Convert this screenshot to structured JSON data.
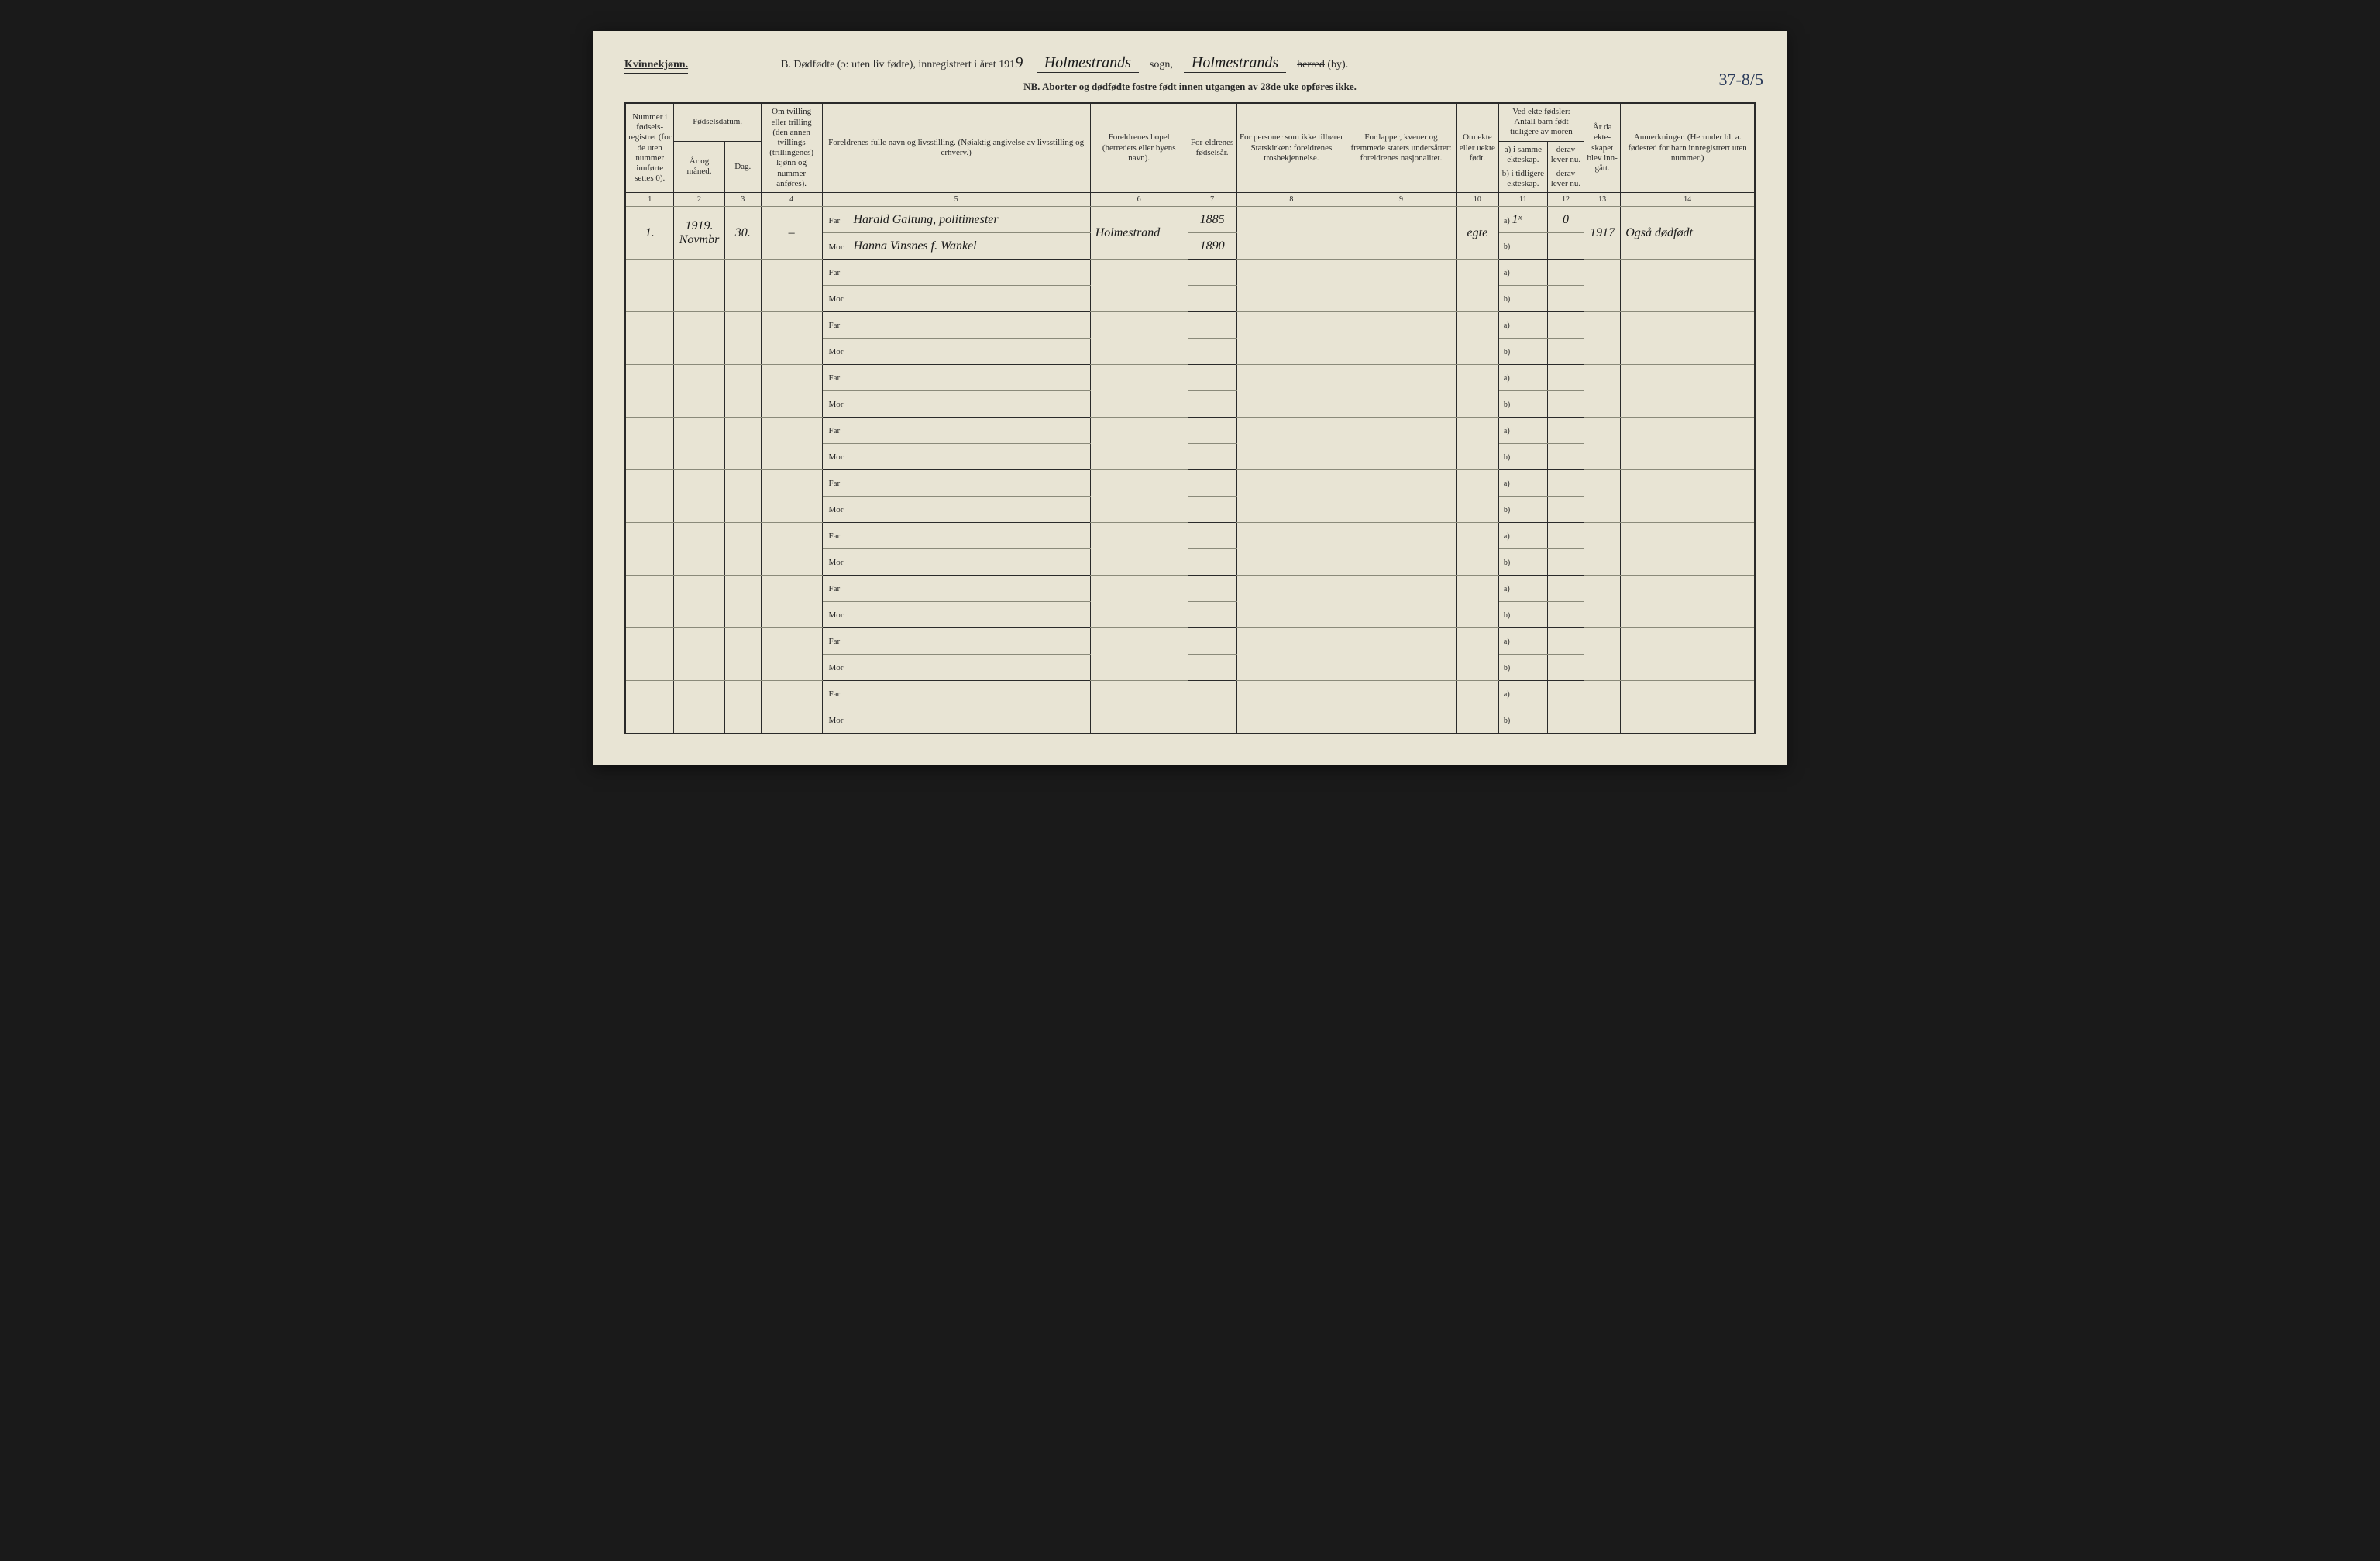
{
  "header": {
    "gender": "Kvinnekjønn.",
    "title_prefix": "B. Dødfødte (ɔ: uten liv fødte), innregistrert i året 191",
    "year_suffix": "9",
    "parish_value": "Holmestrands",
    "sogn_label": "sogn,",
    "district_value": "Holmestrands",
    "herred_strike": "herred",
    "by_label": "(by).",
    "sub_note": "NB. Aborter og dødfødte fostre født innen utgangen av 28de uke opføres ikke.",
    "page_number": "37-8/5"
  },
  "columns": {
    "c1": "Nummer i fødsels-registret (for de uten nummer innførte settes 0).",
    "c2_top": "Fødselsdatum.",
    "c2a": "År og måned.",
    "c2b": "Dag.",
    "c4": "Om tvilling eller trilling (den annen tvillings (trillingenes) kjønn og nummer anføres).",
    "c5": "Foreldrenes fulle navn og livsstilling. (Nøiaktig angivelse av livsstilling og erhverv.)",
    "c6": "Foreldrenes bopel (herredets eller byens navn).",
    "c7": "For-eldrenes fødselsår.",
    "c8": "For personer som ikke tilhører Statskirken: foreldrenes trosbekjennelse.",
    "c9": "For lapper, kvener og fremmede staters undersåtter: foreldrenes nasjonalitet.",
    "c10": "Om ekte eller uekte født.",
    "c11_top": "Ved ekte fødsler: Antall barn født tidligere av moren",
    "c11a": "a) i samme ekteskap.",
    "c11b": "b) i tidligere ekteskap.",
    "c12a": "derav lever nu.",
    "c12b": "derav lever nu.",
    "c13": "År da ekte-skapet blev inn-gått.",
    "c14": "Anmerkninger. (Herunder bl. a. fødested for barn innregistrert uten nummer.)"
  },
  "colnums": [
    "1",
    "2",
    "3",
    "4",
    "5",
    "6",
    "7",
    "8",
    "9",
    "10",
    "11",
    "12",
    "13",
    "14"
  ],
  "far_label": "Far",
  "mor_label": "Mor",
  "ab_a": "a)",
  "ab_b": "b)",
  "entry": {
    "num": "1.",
    "year_month": "1919. Novmbr",
    "day": "30.",
    "twin": "–",
    "far_name": "Harald Galtung, politimester",
    "mor_name": "Hanna Vinsnes f. Wankel",
    "residence": "Holmestrand",
    "far_birth": "1885",
    "mor_birth": "1890",
    "legit": "egte",
    "c11a": "1ˣ",
    "c12a": "0",
    "c13": "1917",
    "remarks": "Også dødfødt"
  }
}
